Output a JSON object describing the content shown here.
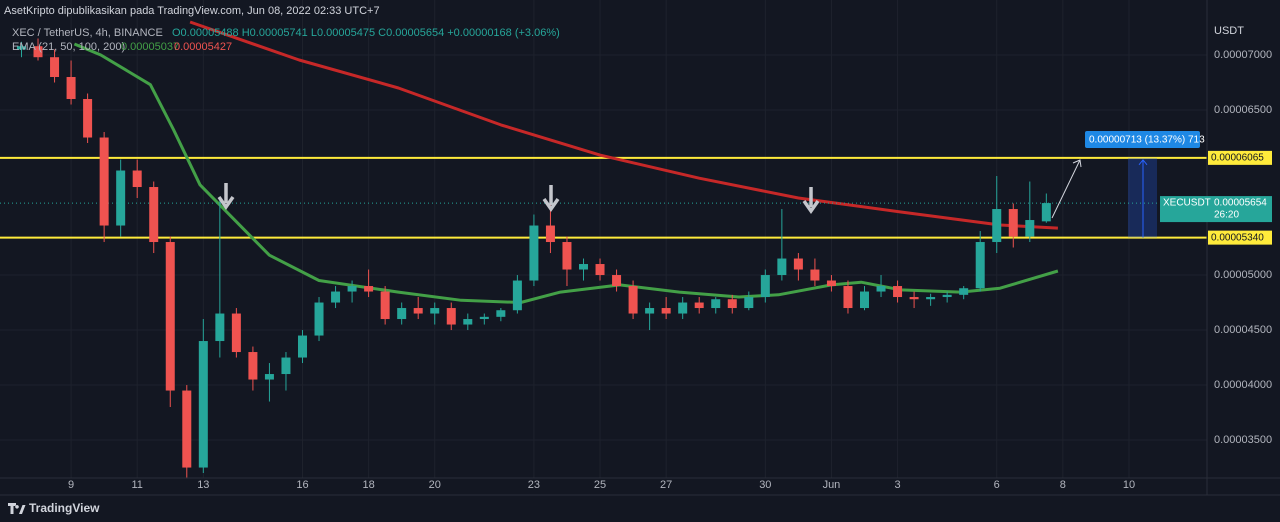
{
  "chart_data": {
    "type": "candlestick",
    "publisher": "AsetKripto dipublikasikan pada TradingView.com, Jun 08, 2022 02:33 UTC+7",
    "symbol": "XEC / TetherUS, 4h, BINANCE",
    "ohlc": "O0.00005488 H0.00005741 L0.00005475 C0.00005654 +0.00000168 (+3.06%)",
    "indicator": "EMA (21, 50, 100, 200)",
    "indicator_values": [
      "0.00005037",
      "0.00005427"
    ],
    "y_unit": "USDT",
    "brand": "TradingView",
    "up_color": "#26a69a",
    "down_color": "#ef5350",
    "grid": true,
    "xlim": [
      6.85,
      43.36
    ],
    "ylim": [
      3.155e-05,
      7.5e-05
    ],
    "xticks": [
      9,
      11,
      13,
      16,
      18,
      20,
      23,
      25,
      27,
      30,
      {
        "value": 32,
        "label": "Jun"
      },
      {
        "value": 34,
        "label": "3"
      },
      {
        "value": 37,
        "label": "6"
      },
      {
        "value": 39,
        "label": "8"
      },
      {
        "value": 41,
        "label": "10"
      }
    ],
    "yticks": [
      {
        "value": 3.5e-05,
        "label": "0.00003500"
      },
      {
        "value": 4e-05,
        "label": "0.00004000"
      },
      {
        "value": 4.5e-05,
        "label": "0.00004500"
      },
      {
        "value": 5e-05,
        "label": "0.00005000"
      },
      {
        "value": 6.5e-05,
        "label": "0.00006500"
      },
      {
        "value": 7e-05,
        "label": "0.00007000"
      }
    ],
    "candles": {
      "x": [
        7.5,
        8,
        8.5,
        9,
        9.5,
        10,
        10.5,
        11,
        11.5,
        12,
        12.5,
        13,
        13.5,
        14,
        14.5,
        15,
        15.5,
        16,
        16.5,
        17,
        17.5,
        18,
        18.5,
        19,
        19.5,
        20,
        20.5,
        21,
        21.5,
        22,
        22.5,
        23,
        23.5,
        24,
        24.5,
        25,
        25.5,
        26,
        26.5,
        27,
        27.5,
        28,
        28.5,
        29,
        29.5,
        30,
        30.5,
        31,
        31.5,
        32,
        32.5,
        33,
        33.5,
        34,
        34.5,
        35,
        35.5,
        36,
        36.5,
        37,
        37.5,
        38,
        38.5
      ],
      "open": [
        7.05e-05,
        7.08e-05,
        6.98e-05,
        6.8e-05,
        6.6e-05,
        6.25e-05,
        5.45e-05,
        5.95e-05,
        5.8e-05,
        5.3e-05,
        3.95e-05,
        3.25e-05,
        4.4e-05,
        4.65e-05,
        4.3e-05,
        4.05e-05,
        4.1e-05,
        4.25e-05,
        4.45e-05,
        4.75e-05,
        4.85e-05,
        4.9e-05,
        4.85e-05,
        4.6e-05,
        4.7e-05,
        4.65e-05,
        4.7e-05,
        4.55e-05,
        4.6e-05,
        4.62e-05,
        4.68e-05,
        4.95e-05,
        5.45e-05,
        5.3e-05,
        5.05e-05,
        5.1e-05,
        5e-05,
        4.9e-05,
        4.65e-05,
        4.7e-05,
        4.65e-05,
        4.75e-05,
        4.7e-05,
        4.78e-05,
        4.7e-05,
        4.8e-05,
        5e-05,
        5.15e-05,
        5.05e-05,
        4.95e-05,
        4.9e-05,
        4.7e-05,
        4.85e-05,
        4.9e-05,
        4.8e-05,
        4.78e-05,
        4.8e-05,
        4.82e-05,
        4.88e-05,
        5.3e-05,
        5.6e-05,
        5.35e-05,
        5.488e-05
      ],
      "high": [
        7.12e-05,
        7.15e-05,
        7.05e-05,
        6.95e-05,
        6.65e-05,
        6.3e-05,
        6.05e-05,
        6.05e-05,
        5.85e-05,
        5.35e-05,
        4e-05,
        4.6e-05,
        5.7e-05,
        4.7e-05,
        4.35e-05,
        4.2e-05,
        4.3e-05,
        4.5e-05,
        4.8e-05,
        4.9e-05,
        4.95e-05,
        5.05e-05,
        4.9e-05,
        4.75e-05,
        4.8e-05,
        4.75e-05,
        4.75e-05,
        4.65e-05,
        4.65e-05,
        4.7e-05,
        5e-05,
        5.55e-05,
        5.75e-05,
        5.35e-05,
        5.15e-05,
        5.15e-05,
        5.05e-05,
        4.95e-05,
        4.75e-05,
        4.8e-05,
        4.8e-05,
        4.8e-05,
        4.8e-05,
        4.82e-05,
        4.85e-05,
        5.05e-05,
        5.6e-05,
        5.2e-05,
        5.15e-05,
        5e-05,
        4.95e-05,
        4.9e-05,
        5e-05,
        4.95e-05,
        4.85e-05,
        4.83e-05,
        4.85e-05,
        4.9e-05,
        5.4e-05,
        5.9e-05,
        5.65e-05,
        5.85e-05,
        5.741e-05
      ],
      "low": [
        6.98e-05,
        6.95e-05,
        6.75e-05,
        6.55e-05,
        6.2e-05,
        5.3e-05,
        5.35e-05,
        5.7e-05,
        5.2e-05,
        3.8e-05,
        3.15e-05,
        3.2e-05,
        4.25e-05,
        4.25e-05,
        3.95e-05,
        3.85e-05,
        3.95e-05,
        4.2e-05,
        4.4e-05,
        4.7e-05,
        4.75e-05,
        4.8e-05,
        4.55e-05,
        4.55e-05,
        4.6e-05,
        4.55e-05,
        4.5e-05,
        4.5e-05,
        4.55e-05,
        4.58e-05,
        4.65e-05,
        4.9e-05,
        5.2e-05,
        4.9e-05,
        4.95e-05,
        4.95e-05,
        4.85e-05,
        4.6e-05,
        4.5e-05,
        4.6e-05,
        4.6e-05,
        4.65e-05,
        4.65e-05,
        4.65e-05,
        4.68e-05,
        4.75e-05,
        4.95e-05,
        4.95e-05,
        4.9e-05,
        4.85e-05,
        4.65e-05,
        4.68e-05,
        4.8e-05,
        4.75e-05,
        4.7e-05,
        4.72e-05,
        4.75e-05,
        4.78e-05,
        4.85e-05,
        5.2e-05,
        5.25e-05,
        5.3e-05,
        5.475e-05
      ],
      "close": [
        7.08e-05,
        6.98e-05,
        6.8e-05,
        6.6e-05,
        6.25e-05,
        5.45e-05,
        5.95e-05,
        5.8e-05,
        5.3e-05,
        3.95e-05,
        3.25e-05,
        4.4e-05,
        4.65e-05,
        4.3e-05,
        4.05e-05,
        4.1e-05,
        4.25e-05,
        4.45e-05,
        4.75e-05,
        4.85e-05,
        4.9e-05,
        4.85e-05,
        4.6e-05,
        4.7e-05,
        4.65e-05,
        4.7e-05,
        4.55e-05,
        4.6e-05,
        4.62e-05,
        4.68e-05,
        4.95e-05,
        5.45e-05,
        5.3e-05,
        5.05e-05,
        5.1e-05,
        5e-05,
        4.9e-05,
        4.65e-05,
        4.7e-05,
        4.65e-05,
        4.75e-05,
        4.7e-05,
        4.78e-05,
        4.7e-05,
        4.8e-05,
        5e-05,
        5.15e-05,
        5.05e-05,
        4.95e-05,
        4.9e-05,
        4.7e-05,
        4.85e-05,
        4.9e-05,
        4.8e-05,
        4.78e-05,
        4.8e-05,
        4.82e-05,
        4.88e-05,
        5.3e-05,
        5.6e-05,
        5.35e-05,
        5.5e-05,
        5.654e-05
      ]
    },
    "series": [
      {
        "color": "#43a047",
        "x": [
          9.1,
          9.9,
          11.4,
          12.1,
          12.9,
          13.8,
          15,
          16.5,
          18.9,
          20.8,
          22.6,
          23.8,
          25.6,
          27.4,
          29.2,
          30.4,
          32,
          32.9,
          34.1,
          35.9,
          37.1,
          38.85
        ],
        "values": [
          7.1e-05,
          7e-05,
          6.73e-05,
          6.32e-05,
          5.82e-05,
          5.545e-05,
          5.18e-05,
          4.95e-05,
          4.845e-05,
          4.77e-05,
          4.75e-05,
          4.845e-05,
          4.91e-05,
          4.845e-05,
          4.8e-05,
          4.82e-05,
          4.91e-05,
          4.935e-05,
          4.865e-05,
          4.845e-05,
          4.88e-05,
          5.037e-05
        ]
      },
      {
        "color": "#c62828",
        "x": [
          12.6,
          15.9,
          18.9,
          22,
          25,
          28,
          31,
          34.1,
          37.1,
          38.85
        ],
        "values": [
          7.3e-05,
          6.955e-05,
          6.7e-05,
          6.365e-05,
          6.09e-05,
          5.88e-05,
          5.7e-05,
          5.573e-05,
          5.455e-05,
          5.427e-05
        ]
      }
    ],
    "hlines": [
      {
        "value": 6.065e-05,
        "label": "0.00006065",
        "color": "#ffeb3b"
      },
      {
        "value": 5.34e-05,
        "label": "0.00005340",
        "color": "#ffeb3b"
      }
    ],
    "last": {
      "name": "XECUSDT",
      "value": 5.654e-05,
      "label": "0.00005654",
      "countdown": "26:20"
    },
    "measure": {
      "label": "0.00000713 (13.37%) 713"
    }
  }
}
